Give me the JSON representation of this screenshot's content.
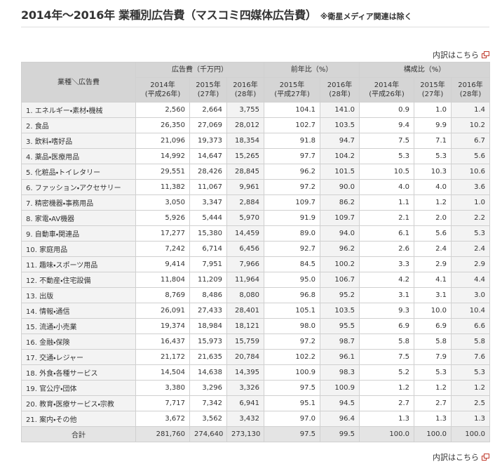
{
  "header": {
    "title": "2014年〜2016年 業種別広告費（マスコミ四媒体広告費）",
    "note": "※衛星メディア関連は除く",
    "link": "内訳はこちら"
  },
  "table": {
    "corner": "業種＼広告費",
    "groups": [
      "広告費（千万円）",
      "前年比（%）",
      "構成比（%）"
    ],
    "subheaders": [
      [
        "2014年",
        "(平成26年)"
      ],
      [
        "2015年",
        "(27年)"
      ],
      [
        "2016年",
        "(28年)"
      ],
      [
        "2015年",
        "(平成27年)"
      ],
      [
        "2016年",
        "(28年)"
      ],
      [
        "2014年",
        "(平成26年)"
      ],
      [
        "2015年",
        "(27年)"
      ],
      [
        "2016年",
        "(28年)"
      ]
    ],
    "rows": [
      [
        "1. エネルギー・素材・機械",
        "2,560",
        "2,664",
        "3,755",
        "104.1",
        "141.0",
        "0.9",
        "1.0",
        "1.4"
      ],
      [
        "2. 食品",
        "26,350",
        "27,069",
        "28,012",
        "102.7",
        "103.5",
        "9.4",
        "9.9",
        "10.2"
      ],
      [
        "3. 飲料・嗜好品",
        "21,096",
        "19,373",
        "18,354",
        "91.8",
        "94.7",
        "7.5",
        "7.1",
        "6.7"
      ],
      [
        "4. 薬品・医療用品",
        "14,992",
        "14,647",
        "15,265",
        "97.7",
        "104.2",
        "5.3",
        "5.3",
        "5.6"
      ],
      [
        "5. 化粧品・トイレタリー",
        "29,551",
        "28,426",
        "28,845",
        "96.2",
        "101.5",
        "10.5",
        "10.3",
        "10.6"
      ],
      [
        "6. ファッション・アクセサリー",
        "11,382",
        "11,067",
        "9,961",
        "97.2",
        "90.0",
        "4.0",
        "4.0",
        "3.6"
      ],
      [
        "7. 精密機器・事務用品",
        "3,050",
        "3,347",
        "2,884",
        "109.7",
        "86.2",
        "1.1",
        "1.2",
        "1.0"
      ],
      [
        "8. 家電・AV機器",
        "5,926",
        "5,444",
        "5,970",
        "91.9",
        "109.7",
        "2.1",
        "2.0",
        "2.2"
      ],
      [
        "9. 自動車・関連品",
        "17,277",
        "15,380",
        "14,459",
        "89.0",
        "94.0",
        "6.1",
        "5.6",
        "5.3"
      ],
      [
        "10. 家庭用品",
        "7,242",
        "6,714",
        "6,456",
        "92.7",
        "96.2",
        "2.6",
        "2.4",
        "2.4"
      ],
      [
        "11. 趣味・スポーツ用品",
        "9,414",
        "7,951",
        "7,966",
        "84.5",
        "100.2",
        "3.3",
        "2.9",
        "2.9"
      ],
      [
        "12. 不動産・住宅設備",
        "11,804",
        "11,209",
        "11,964",
        "95.0",
        "106.7",
        "4.2",
        "4.1",
        "4.4"
      ],
      [
        "13. 出版",
        "8,769",
        "8,486",
        "8,080",
        "96.8",
        "95.2",
        "3.1",
        "3.1",
        "3.0"
      ],
      [
        "14. 情報・通信",
        "26,091",
        "27,433",
        "28,401",
        "105.1",
        "103.5",
        "9.3",
        "10.0",
        "10.4"
      ],
      [
        "15. 流通・小売業",
        "19,374",
        "18,984",
        "18,121",
        "98.0",
        "95.5",
        "6.9",
        "6.9",
        "6.6"
      ],
      [
        "16. 金融・保険",
        "16,437",
        "15,973",
        "15,759",
        "97.2",
        "98.7",
        "5.8",
        "5.8",
        "5.8"
      ],
      [
        "17. 交通・レジャー",
        "21,172",
        "21,635",
        "20,784",
        "102.2",
        "96.1",
        "7.5",
        "7.9",
        "7.6"
      ],
      [
        "18. 外食・各種サービス",
        "14,504",
        "14,638",
        "14,395",
        "100.9",
        "98.3",
        "5.2",
        "5.3",
        "5.3"
      ],
      [
        "19. 官公庁・団体",
        "3,380",
        "3,296",
        "3,326",
        "97.5",
        "100.9",
        "1.2",
        "1.2",
        "1.2"
      ],
      [
        "20. 教育・医療サービス・宗教",
        "7,717",
        "7,342",
        "6,941",
        "95.1",
        "94.5",
        "2.7",
        "2.7",
        "2.5"
      ],
      [
        "21. 案内・その他",
        "3,672",
        "3,562",
        "3,432",
        "97.0",
        "96.4",
        "1.3",
        "1.3",
        "1.3"
      ]
    ],
    "total": [
      "合計",
      "281,760",
      "274,640",
      "273,130",
      "97.5",
      "99.5",
      "100.0",
      "100.0",
      "100.0"
    ]
  }
}
